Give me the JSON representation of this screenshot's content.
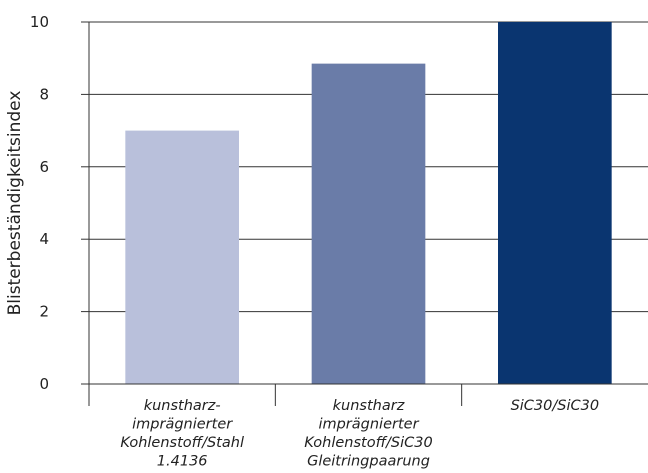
{
  "chart_data": {
    "type": "bar",
    "ylabel": "Blisterbeständigkeitsindex",
    "xlabel": "",
    "title": "",
    "ylim": [
      0,
      10
    ],
    "yticks": [
      0,
      2,
      4,
      6,
      8,
      10
    ],
    "grid": true,
    "categories": [
      {
        "lines": [
          "kunstharz-",
          "imprägnierter",
          "Kohlenstoff/Stahl",
          "1.4136"
        ],
        "value": 7.0,
        "color": "#b9c0db"
      },
      {
        "lines": [
          "kunstharz",
          "imprägnierter",
          "Kohlenstoff/SiC30",
          "Gleitringpaarung"
        ],
        "value": 8.85,
        "color": "#6a7ca8"
      },
      {
        "lines": [
          "SiC30/SiC30"
        ],
        "value": 10.0,
        "color": "#0a3570"
      }
    ]
  }
}
